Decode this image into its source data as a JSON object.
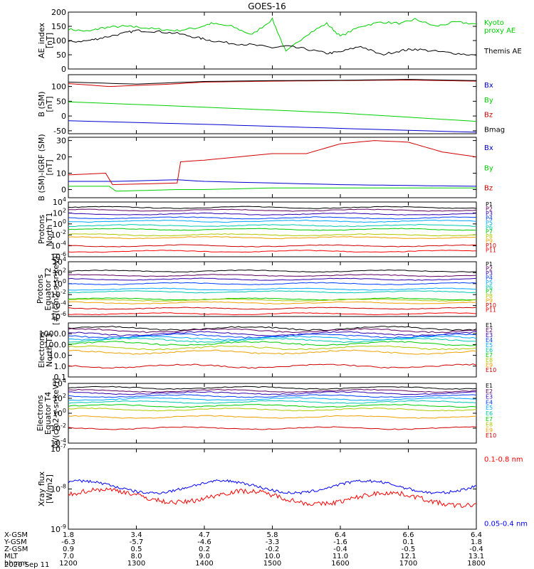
{
  "title": "GOES-16",
  "x_ticks": [
    "1200",
    "1300",
    "1400",
    "1500",
    "1600",
    "1700",
    "1800"
  ],
  "orbit": {
    "rows": [
      {
        "label": "X-GSM",
        "values": [
          "1.8",
          "3.4",
          "4.7",
          "5.8",
          "6.4",
          "6.6",
          "6.4"
        ]
      },
      {
        "label": "Y-GSM",
        "values": [
          "-6.3",
          "-5.7",
          "-4.6",
          "-3.3",
          "-1.6",
          "0.1",
          "1.8"
        ]
      },
      {
        "label": "Z-GSM",
        "values": [
          "0.9",
          "0.5",
          "0.2",
          "-0.2",
          "-0.4",
          "-0.5",
          "-0.4"
        ]
      },
      {
        "label": "MLT",
        "values": [
          "7.0",
          "8.0",
          "9.0",
          "10.0",
          "11.0",
          "12.1",
          "13.1"
        ]
      },
      {
        "label": "hhmm",
        "values": [
          "1200",
          "1300",
          "1400",
          "1500",
          "1600",
          "1700",
          "1800"
        ]
      }
    ],
    "date": "2020 Sep 11"
  },
  "chart_data": [
    {
      "type": "line",
      "panel": "ae",
      "ylabel": [
        "AE_index",
        "[nT]"
      ],
      "ylim": [
        0,
        200
      ],
      "yticks": [
        "200",
        "150",
        "100",
        "50",
        "0"
      ],
      "series": [
        {
          "name": "Kyoto proxy AE",
          "label_lines": [
            "Kyoto",
            "proxy AE"
          ],
          "color": "#00d000",
          "x": [
            0,
            0.3,
            0.5,
            0.8,
            1.0,
            1.3,
            1.6,
            1.9,
            2.1,
            2.4,
            2.7,
            3.0,
            3.2,
            3.5,
            3.8,
            4.0,
            4.3,
            4.6,
            4.9,
            5.1,
            5.4,
            5.7,
            6.0
          ],
          "values": [
            140,
            132,
            145,
            150,
            148,
            140,
            135,
            145,
            160,
            150,
            120,
            175,
            60,
            120,
            160,
            115,
            150,
            165,
            160,
            175,
            150,
            165,
            158
          ]
        },
        {
          "name": "Themis AE",
          "label_lines": [
            "Themis AE"
          ],
          "color": "#000000",
          "x": [
            0,
            0.3,
            0.5,
            0.8,
            1.0,
            1.3,
            1.6,
            1.9,
            2.1,
            2.4,
            2.7,
            3.0,
            3.2,
            3.5,
            3.8,
            4.0,
            4.3,
            4.6,
            4.9,
            5.1,
            5.4,
            5.7,
            6.0
          ],
          "values": [
            95,
            100,
            110,
            125,
            135,
            132,
            125,
            110,
            100,
            90,
            85,
            75,
            80,
            70,
            55,
            60,
            80,
            50,
            65,
            70,
            62,
            55,
            48
          ]
        }
      ]
    },
    {
      "type": "line",
      "panel": "bsm",
      "ylabel": [
        "B (SM)",
        "[nT]"
      ],
      "ylim": [
        -60,
        140
      ],
      "yticks": [
        "100",
        "50",
        "0",
        "-50"
      ],
      "series": [
        {
          "name": "Bx",
          "label_lines": [
            "Bx"
          ],
          "color": "#0000d0",
          "x": [
            0,
            2,
            4,
            6
          ],
          "values": [
            -16,
            -28,
            -42,
            -55
          ]
        },
        {
          "name": "By",
          "label_lines": [
            "By"
          ],
          "color": "#00d000",
          "x": [
            0,
            2,
            4,
            6
          ],
          "values": [
            48,
            30,
            10,
            -18
          ]
        },
        {
          "name": "Bz",
          "label_lines": [
            "Bz"
          ],
          "color": "#d00000",
          "x": [
            0,
            0.6,
            1.5,
            2,
            3,
            4,
            5,
            6
          ],
          "values": [
            110,
            100,
            108,
            115,
            118,
            120,
            122,
            118
          ]
        },
        {
          "name": "Bmag",
          "label_lines": [
            "Bmag"
          ],
          "color": "#000000",
          "x": [
            0,
            1,
            2,
            3,
            4,
            5,
            6
          ],
          "values": [
            115,
            108,
            117,
            120,
            121,
            124,
            120
          ]
        }
      ]
    },
    {
      "type": "line",
      "panel": "bigrf",
      "ylabel": [
        "B (SM)-IGRF (SM)",
        "[nT]"
      ],
      "ylim": [
        -5,
        32
      ],
      "yticks": [
        "30",
        "20",
        "10",
        "0"
      ],
      "series": [
        {
          "name": "Bx",
          "label_lines": [
            "Bx"
          ],
          "color": "#0000d0",
          "x": [
            0,
            0.7,
            1.6,
            2,
            3,
            4,
            5,
            6
          ],
          "values": [
            5,
            5,
            6,
            5,
            4,
            3,
            2.5,
            2
          ]
        },
        {
          "name": "By",
          "label_lines": [
            "By"
          ],
          "color": "#00d000",
          "x": [
            0,
            0.6,
            0.7,
            1.6,
            2,
            3,
            4,
            5,
            6
          ],
          "values": [
            2,
            2,
            -1,
            0,
            0,
            1,
            1,
            1,
            1
          ]
        },
        {
          "name": "Bz",
          "label_lines": [
            "Bz"
          ],
          "color": "#d00000",
          "x": [
            0,
            0.55,
            0.65,
            1.6,
            1.65,
            2,
            3,
            3.5,
            4,
            4.5,
            5,
            5.5,
            6
          ],
          "values": [
            9,
            10,
            3,
            4,
            17,
            18,
            22,
            22,
            28,
            30,
            29,
            23,
            20
          ]
        }
      ]
    },
    {
      "type": "line",
      "panel": "p_t1",
      "scale": "log",
      "ylabel": [
        "Protons",
        "North T1"
      ],
      "ylim_log": [
        -6,
        4
      ],
      "yticks": [
        "10^4",
        "10^2",
        "10^0",
        "10^-2",
        "10^-4",
        "10^-6"
      ],
      "series": [
        {
          "name": "P1",
          "color": "#000000",
          "level": 3
        },
        {
          "name": "P2",
          "color": "#600060",
          "level": 2.5
        },
        {
          "name": "P3",
          "color": "#3000b0",
          "level": 1.8
        },
        {
          "name": "P4",
          "color": "#0040ff",
          "level": 1.1
        },
        {
          "name": "P5",
          "color": "#00a8ff",
          "level": 0.5
        },
        {
          "name": "P6",
          "color": "#00c8b0",
          "level": -0.3
        },
        {
          "name": "P7",
          "color": "#00cc00",
          "level": -1
        },
        {
          "name": "P8",
          "color": "#b0c800",
          "level": -2
        },
        {
          "name": "P9",
          "color": "#f0a000",
          "level": -2.5
        },
        {
          "name": "P10",
          "color": "#d00000",
          "level": -4
        },
        {
          "name": "P11",
          "color": "#ff0000",
          "level": -5
        }
      ]
    },
    {
      "type": "line",
      "panel": "p_t2",
      "scale": "log",
      "ylabel": [
        "Protons",
        "Equator T2",
        "[#/(cm^2-s-sr-keV)]"
      ],
      "ylim_log": [
        -6,
        4
      ],
      "yticks": [
        "10^4",
        "10^2",
        "10^0",
        "10^-2",
        "10^-4",
        "10^-6"
      ],
      "series": [
        {
          "name": "P1",
          "color": "#000000",
          "level": 2.3
        },
        {
          "name": "P2",
          "color": "#600060",
          "level": 1.5
        },
        {
          "name": "P3",
          "color": "#3000b0",
          "level": 0.8
        },
        {
          "name": "P4",
          "color": "#0040ff",
          "level": 0
        },
        {
          "name": "P5",
          "color": "#00a8ff",
          "level": -1
        },
        {
          "name": "P6",
          "color": "#00c8b0",
          "level": -1.5
        },
        {
          "name": "P7",
          "color": "#00cc00",
          "level": -2.8
        },
        {
          "name": "P8",
          "color": "#b0c800",
          "level": -3
        },
        {
          "name": "P9",
          "color": "#f0a000",
          "level": -3.5
        },
        {
          "name": "P10",
          "color": "#d00000",
          "level": -4.5
        },
        {
          "name": "P11",
          "color": "#ff0000",
          "level": -5.5
        }
      ]
    },
    {
      "type": "line",
      "panel": "e_t3",
      "scale": "log",
      "ylabel": [
        "Electrons",
        "North T3"
      ],
      "ylim_log": [
        -1,
        4
      ],
      "yticks": [
        "1000.0",
        "100.0",
        "10.0",
        "1.0",
        "0.1"
      ],
      "series": [
        {
          "name": "E1",
          "color": "#000000",
          "level": 3.5
        },
        {
          "name": "E2",
          "color": "#600060",
          "level": 3.3
        },
        {
          "name": "E3",
          "color": "#3000b0",
          "level": 3
        },
        {
          "name": "E4",
          "color": "#0040ff",
          "level": 2.8
        },
        {
          "name": "E5",
          "color": "#00a8ff",
          "level": 2.6
        },
        {
          "name": "E6",
          "color": "#00c8b0",
          "level": 2.4
        },
        {
          "name": "E7",
          "color": "#00cc00",
          "level": 2.1
        },
        {
          "name": "E8",
          "color": "#b0c800",
          "level": 1.7
        },
        {
          "name": "E9",
          "color": "#f0a000",
          "level": 1.3
        },
        {
          "name": "E10",
          "color": "#d00000",
          "level": 0
        }
      ]
    },
    {
      "type": "line",
      "panel": "e_t4",
      "scale": "log",
      "ylabel": [
        "Electrons",
        "Equator T4",
        "[e/(cm^2-s-sr-keV)]"
      ],
      "ylim_log": [
        -4,
        4
      ],
      "yticks": [
        "10^4",
        "10^2",
        "10^0",
        "10^-2",
        "10^-4"
      ],
      "series": [
        {
          "name": "E1",
          "color": "#000000",
          "level": 3.4
        },
        {
          "name": "E2",
          "color": "#600060",
          "level": 3
        },
        {
          "name": "E3",
          "color": "#3000b0",
          "level": 2.7
        },
        {
          "name": "E4",
          "color": "#0040ff",
          "level": 2.3
        },
        {
          "name": "E5",
          "color": "#00a8ff",
          "level": 1.9
        },
        {
          "name": "E6",
          "color": "#00c8b0",
          "level": 1.5
        },
        {
          "name": "E7",
          "color": "#00cc00",
          "level": 1
        },
        {
          "name": "E8",
          "color": "#b0c800",
          "level": 0.5
        },
        {
          "name": "E9",
          "color": "#f0a000",
          "level": -0.5
        },
        {
          "name": "E10",
          "color": "#d00000",
          "level": -2
        }
      ]
    },
    {
      "type": "line",
      "panel": "xray",
      "scale": "log",
      "ylabel": [
        "Xray flux",
        "[W/m^2]"
      ],
      "ylim_log": [
        -9,
        -7
      ],
      "yticks": [
        "10^-7",
        "10^-8",
        "10^-9"
      ],
      "series": [
        {
          "name": "0.1-0.8 nm",
          "label_lines": [
            "0.1-0.8 nm"
          ],
          "color": "#ff0000",
          "level": -8.15
        },
        {
          "name": "0.05-0.4 nm",
          "label_lines": [
            "0.05-0.4 nm"
          ],
          "color": "#0000ff",
          "level": -7.95
        }
      ]
    }
  ]
}
